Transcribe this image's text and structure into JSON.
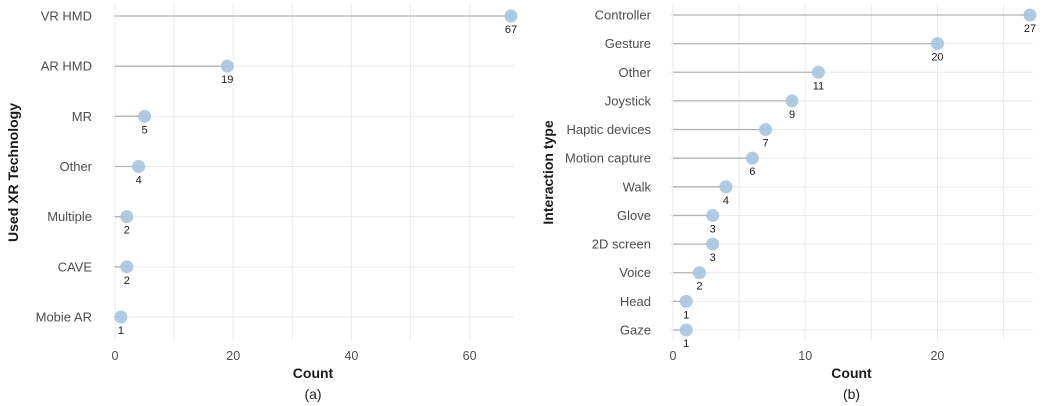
{
  "chart_data": [
    {
      "type": "lollipop",
      "orientation": "horizontal",
      "categories": [
        "VR HMD",
        "AR HMD",
        "MR",
        "Other",
        "Multiple",
        "CAVE",
        "Mobie AR"
      ],
      "values": [
        67,
        19,
        5,
        4,
        2,
        2,
        1
      ],
      "xlabel": "Count",
      "ylabel": "Used XR Technology",
      "xlim": [
        0,
        67
      ],
      "xticks": [
        0,
        20,
        40,
        60
      ],
      "grid": true,
      "panel_label": "(a)",
      "point_color": "#a9c4e0",
      "stem_color": "#b3b3b3"
    },
    {
      "type": "lollipop",
      "orientation": "horizontal",
      "categories": [
        "Controller",
        "Gesture",
        "Other",
        "Joystick",
        "Haptic devices",
        "Motion capture",
        "Walk",
        "Glove",
        "2D screen",
        "Voice",
        "Head",
        "Gaze"
      ],
      "values": [
        27,
        20,
        11,
        9,
        7,
        6,
        4,
        3,
        3,
        2,
        1,
        1
      ],
      "xlabel": "Count",
      "ylabel": "Interaction type",
      "xlim": [
        0,
        27
      ],
      "xticks": [
        0,
        10,
        20
      ],
      "grid": true,
      "panel_label": "(b)",
      "point_color": "#a9c4e0",
      "stem_color": "#b3b3b3"
    }
  ]
}
